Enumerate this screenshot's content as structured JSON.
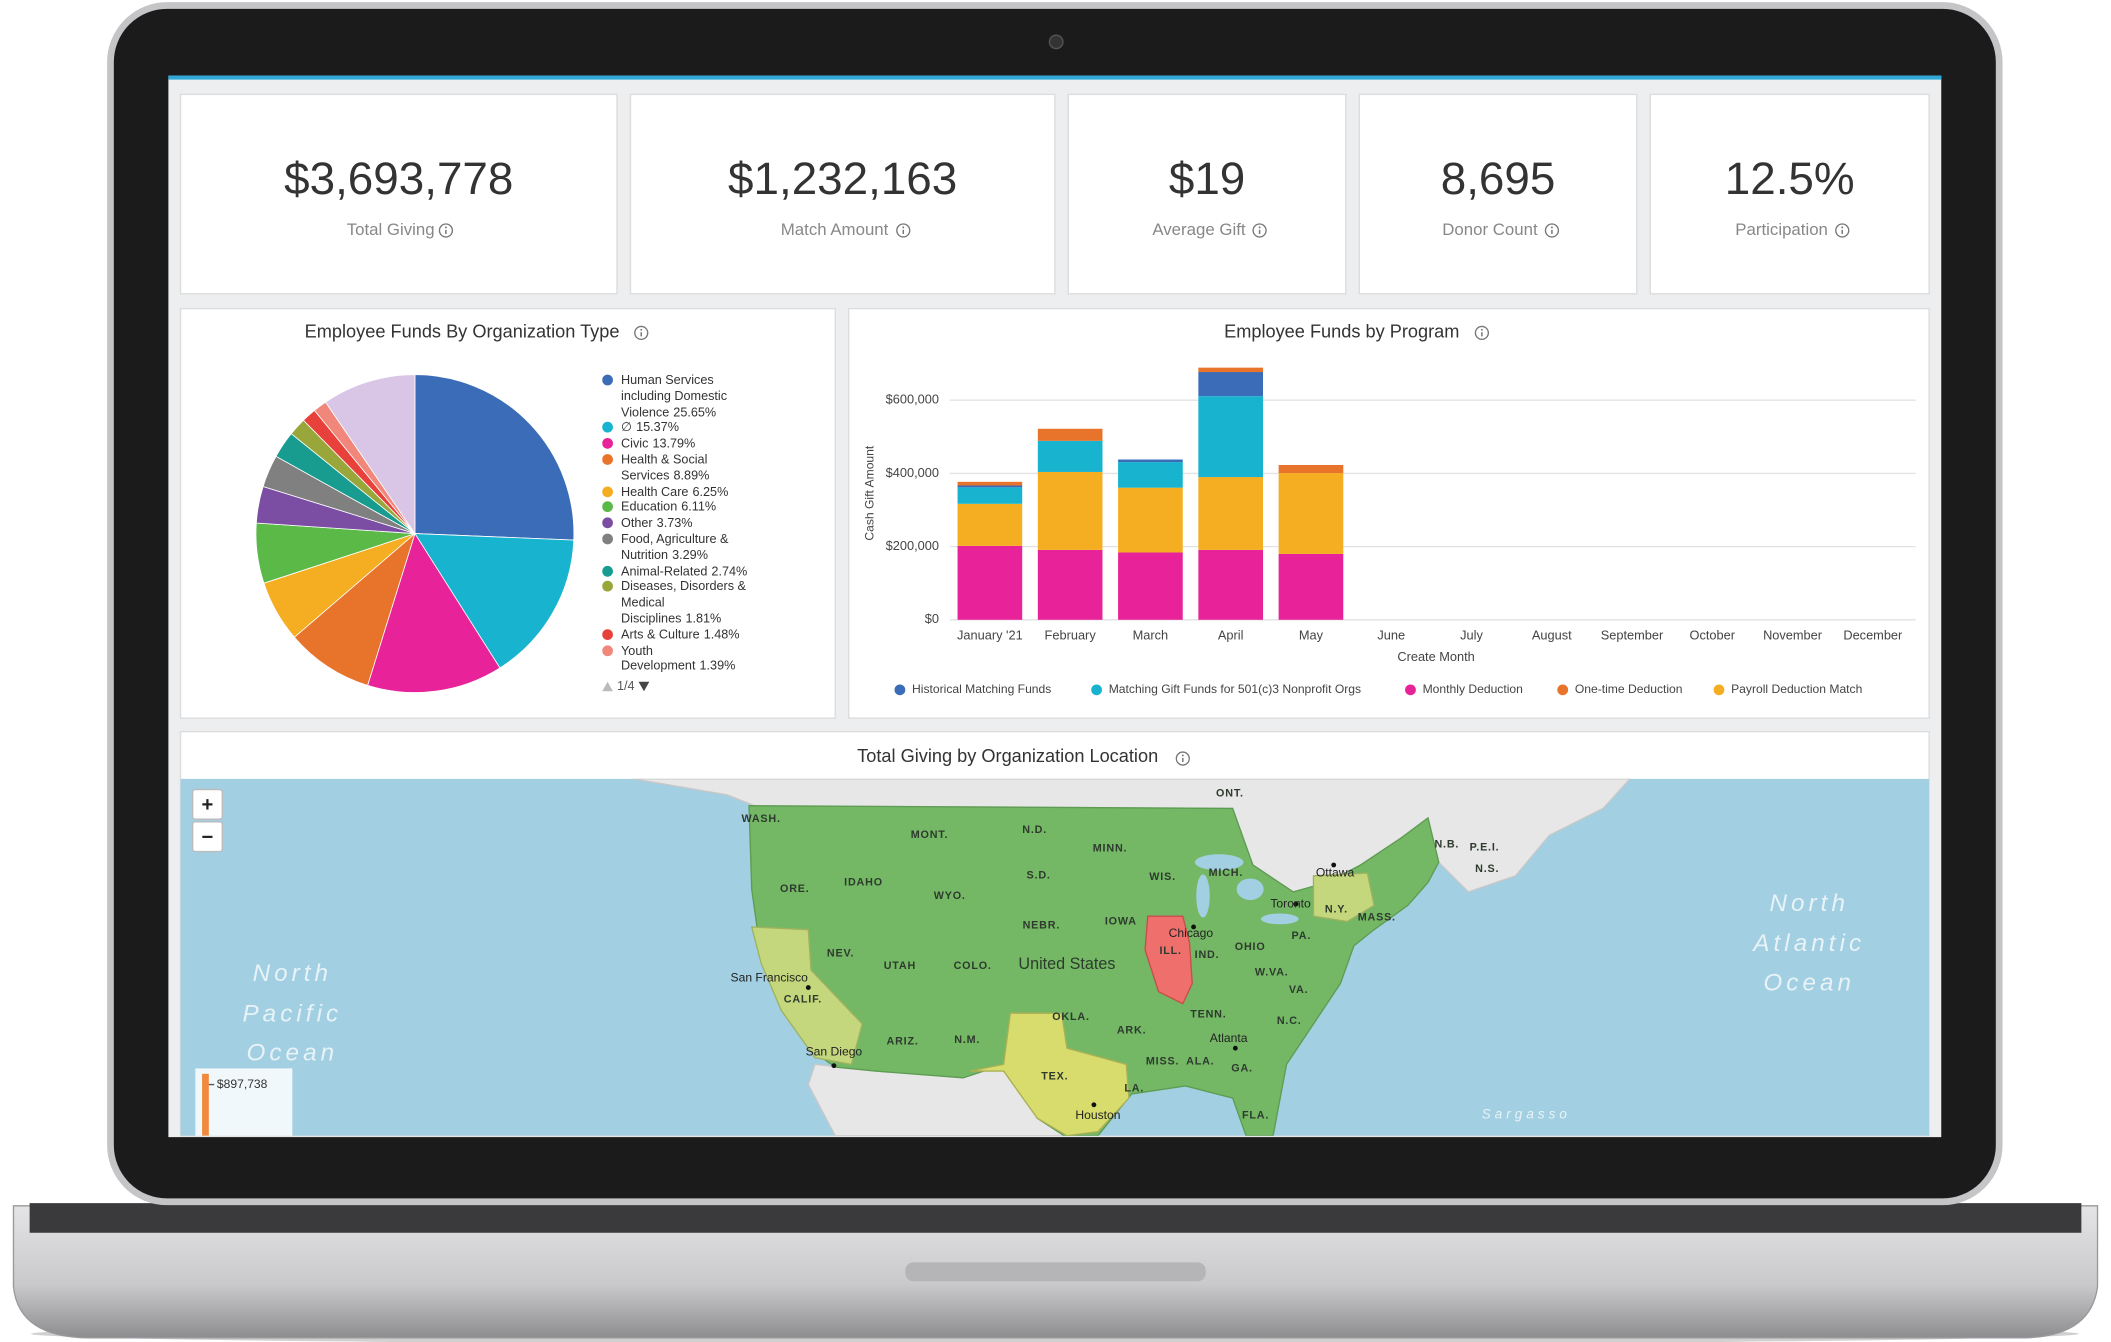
{
  "kpis": [
    {
      "value": "$3,693,778",
      "label": "Total Giving"
    },
    {
      "value": "$1,232,163",
      "label": "Match Amount"
    },
    {
      "value": "$19",
      "label": "Average Gift"
    },
    {
      "value": "8,695",
      "label": "Donor Count"
    },
    {
      "value": "12.5%",
      "label": "Participation"
    }
  ],
  "chart_data": [
    {
      "type": "pie",
      "title": "Employee Funds By Organization Type",
      "categories": [
        "Human Services including Domestic Violence",
        "∅",
        "Civic",
        "Health & Social Services",
        "Health Care",
        "Education",
        "Other",
        "Food, Agriculture & Nutrition",
        "Animal-Related",
        "Diseases, Disorders & Medical Disciplines",
        "Arts & Culture",
        "Youth Development"
      ],
      "values": [
        25.65,
        15.37,
        13.79,
        8.89,
        6.25,
        6.11,
        3.73,
        3.29,
        2.74,
        1.81,
        1.48,
        1.39
      ],
      "value_labels": [
        "25.65%",
        "15.37%",
        "13.79%",
        "8.89%",
        "6.25%",
        "6.11%",
        "3.73%",
        "3.29%",
        "2.74%",
        "1.81%",
        "1.48%",
        "1.39%"
      ],
      "colors": [
        "#3b6cb7",
        "#17b3cf",
        "#e8239a",
        "#e8732a",
        "#f5ad22",
        "#5bb947",
        "#7b4ea3",
        "#808080",
        "#179c8f",
        "#99a63a",
        "#e8403a",
        "#f0877a"
      ],
      "pager": "1/4"
    },
    {
      "type": "bar",
      "stacked": true,
      "title": "Employee Funds by Program",
      "x_label": "Create Month",
      "y_label": "Cash Gift Amount",
      "categories": [
        "January '21",
        "February",
        "March",
        "April",
        "May",
        "June",
        "July",
        "August",
        "September",
        "October",
        "November",
        "December"
      ],
      "series": [
        {
          "name": "Historical Matching Funds",
          "color": "#3b6cb7",
          "values": [
            5000,
            null,
            7000,
            66000,
            null,
            null,
            null,
            null,
            null,
            null,
            null,
            null
          ]
        },
        {
          "name": "Matching Gift Funds for 501(c)3 Nonprofit Orgs",
          "color": "#17b3cf",
          "values": [
            45000,
            85000,
            70000,
            221000,
            null,
            null,
            null,
            null,
            null,
            null,
            null,
            null
          ]
        },
        {
          "name": "Monthly Deduction",
          "color": "#e8239a",
          "values": [
            202000,
            191000,
            184000,
            191000,
            180000,
            null,
            null,
            null,
            null,
            null,
            null,
            null
          ]
        },
        {
          "name": "One-time Deduction",
          "color": "#e8732a",
          "values": [
            10000,
            33000,
            null,
            12000,
            22000,
            null,
            null,
            null,
            null,
            null,
            null,
            null
          ]
        },
        {
          "name": "Payroll Deduction Match",
          "color": "#f5ad22",
          "values": [
            115000,
            213000,
            177000,
            199000,
            221000,
            null,
            null,
            null,
            null,
            null,
            null,
            null
          ]
        }
      ],
      "ylim": [
        0,
        700000
      ],
      "yticks": [
        {
          "value": 0,
          "label": "$0"
        },
        {
          "value": 200000,
          "label": "$200,000"
        },
        {
          "value": 400000,
          "label": "$400,000"
        },
        {
          "value": 600000,
          "label": "$600,000"
        }
      ],
      "grid": true
    }
  ],
  "map": {
    "title": "Total Giving by Organization Location",
    "zoom_in": "+",
    "zoom_out": "−",
    "colorbar_max": {
      "value": 897738,
      "label": "$897,738"
    },
    "regions": [
      "WASH.",
      "MONT.",
      "N.D.",
      "MINN.",
      "ORE.",
      "IDAHO",
      "WYO.",
      "S.D.",
      "WIS.",
      "MICH.",
      "NEBR.",
      "IOWA",
      "NEV.",
      "UTAH",
      "COLO.",
      "United States",
      "ILL.",
      "IND.",
      "OHIO",
      "PA.",
      "N.Y.",
      "MASS.",
      "CALIF.",
      "OKLA.",
      "TENN.",
      "W.VA.",
      "VA.",
      "N.C.",
      "ARIZ.",
      "N.M.",
      "ARK.",
      "MISS.",
      "ALA.",
      "GA.",
      "TEX.",
      "LA.",
      "FLA.",
      "ONT.",
      "N.B.",
      "P.E.I.",
      "N.S."
    ],
    "cities": [
      "Chicago",
      "Ottawa",
      "Toronto",
      "San Francisco",
      "San Diego",
      "Atlanta",
      "Houston"
    ],
    "oceans": [
      "North Pacific Ocean",
      "North Atlantic Ocean",
      "Sargasso"
    ]
  }
}
